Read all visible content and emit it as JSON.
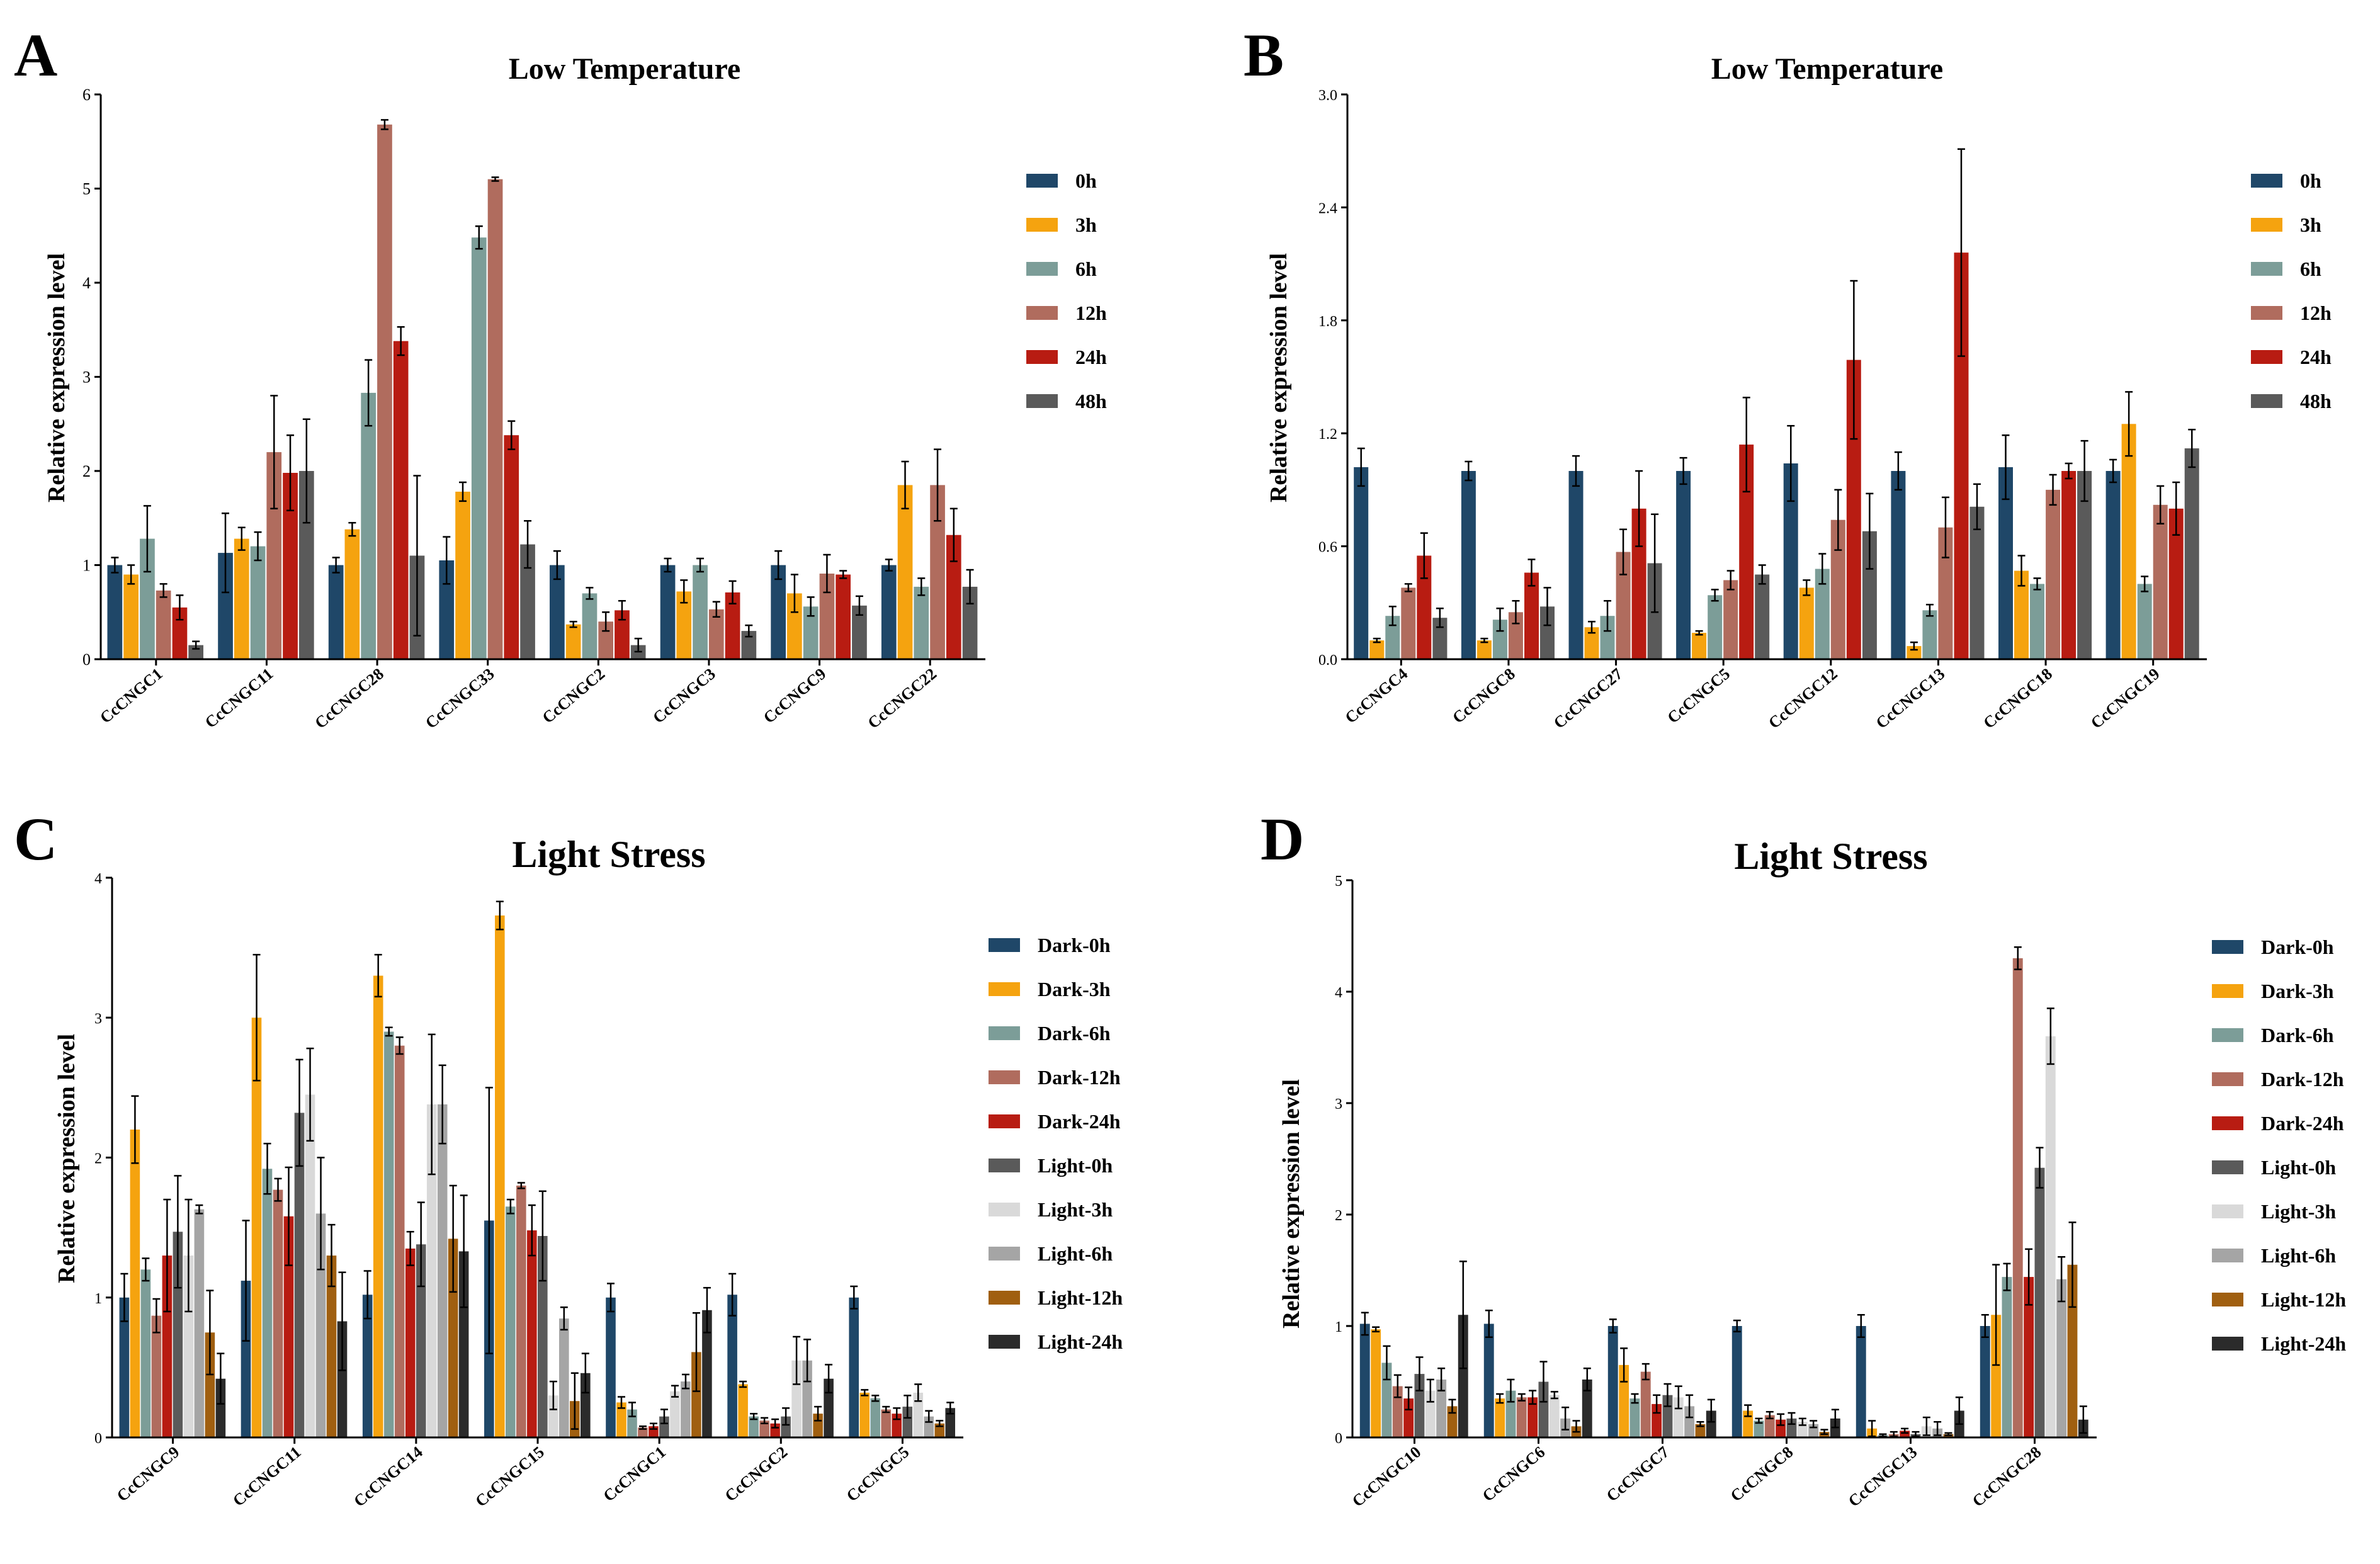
{
  "figure": {
    "colors": {
      "c0": "#1f4768",
      "c1": "#f5a30f",
      "c2": "#7c9d98",
      "c3": "#b06c5e",
      "c4": "#b81c12",
      "c5": "#5a5a5a",
      "c6": "#d9d9d9",
      "c7": "#a5a5a5",
      "c8": "#a05f10",
      "c9": "#2b2b2b"
    }
  },
  "chart_data": [
    {
      "panel": "A",
      "type": "bar",
      "title": "Low Temperature",
      "xlabel": "",
      "ylabel": "Relative expression level",
      "ylim": [
        0,
        6
      ],
      "yticks": [
        "0",
        "1",
        "2",
        "3",
        "4",
        "5",
        "6"
      ],
      "ytick_values": [
        0,
        1,
        2,
        3,
        4,
        5,
        6
      ],
      "legend_position": "right",
      "categories": [
        "CcCNGC1",
        "CcCNGC11",
        "CcCNGC28",
        "CcCNGC33",
        "CcCNGC2",
        "CcCNGC3",
        "CcCNGC9",
        "CcCNGC22"
      ],
      "series": [
        {
          "name": "0h",
          "color": "#1f4768",
          "values": [
            1.0,
            1.13,
            1.0,
            1.05,
            1.0,
            1.0,
            1.0,
            1.0
          ],
          "errors": [
            0.08,
            0.42,
            0.08,
            0.25,
            0.15,
            0.07,
            0.15,
            0.06
          ]
        },
        {
          "name": "3h",
          "color": "#f5a30f",
          "values": [
            0.9,
            1.28,
            1.38,
            1.78,
            0.37,
            0.72,
            0.7,
            1.85
          ],
          "errors": [
            0.1,
            0.12,
            0.07,
            0.1,
            0.03,
            0.12,
            0.2,
            0.25
          ]
        },
        {
          "name": "6h",
          "color": "#7c9d98",
          "values": [
            1.28,
            1.2,
            2.83,
            4.48,
            0.7,
            1.0,
            0.56,
            0.77
          ],
          "errors": [
            0.35,
            0.15,
            0.35,
            0.12,
            0.06,
            0.07,
            0.1,
            0.09
          ]
        },
        {
          "name": "12h",
          "color": "#b06c5e",
          "values": [
            0.73,
            2.2,
            5.68,
            5.1,
            0.4,
            0.53,
            0.91,
            1.85
          ],
          "errors": [
            0.07,
            0.6,
            0.05,
            0.02,
            0.1,
            0.08,
            0.2,
            0.38
          ]
        },
        {
          "name": "24h",
          "color": "#b81c12",
          "values": [
            0.55,
            1.98,
            3.38,
            2.38,
            0.52,
            0.71,
            0.9,
            1.32
          ],
          "errors": [
            0.13,
            0.4,
            0.15,
            0.15,
            0.1,
            0.12,
            0.04,
            0.28
          ]
        },
        {
          "name": "48h",
          "color": "#5a5a5a",
          "values": [
            0.15,
            2.0,
            1.1,
            1.22,
            0.15,
            0.3,
            0.57,
            0.77
          ],
          "errors": [
            0.04,
            0.55,
            0.85,
            0.25,
            0.07,
            0.06,
            0.1,
            0.18
          ]
        }
      ]
    },
    {
      "panel": "B",
      "type": "bar",
      "title": "Low Temperature",
      "xlabel": "",
      "ylabel": "Relative expression level",
      "ylim": [
        0,
        3.0
      ],
      "yticks": [
        "0.0",
        "0.6",
        "1.2",
        "1.8",
        "2.4",
        "3.0"
      ],
      "ytick_values": [
        0,
        0.6,
        1.2,
        1.8,
        2.4,
        3.0
      ],
      "legend_position": "right",
      "categories": [
        "CcCNGC4",
        "CcCNGC8",
        "CcCNGC27",
        "CcCNGC5",
        "CcCNGC12",
        "CcCNGC13",
        "CcCNGC18",
        "CcCNGC19"
      ],
      "series": [
        {
          "name": "0h",
          "color": "#1f4768",
          "values": [
            1.02,
            1.0,
            1.0,
            1.0,
            1.04,
            1.0,
            1.02,
            1.0
          ],
          "errors": [
            0.1,
            0.05,
            0.08,
            0.07,
            0.2,
            0.1,
            0.17,
            0.06
          ]
        },
        {
          "name": "3h",
          "color": "#f5a30f",
          "values": [
            0.1,
            0.1,
            0.17,
            0.14,
            0.38,
            0.07,
            0.47,
            1.25
          ],
          "errors": [
            0.01,
            0.01,
            0.03,
            0.01,
            0.04,
            0.02,
            0.08,
            0.17
          ]
        },
        {
          "name": "6h",
          "color": "#7c9d98",
          "values": [
            0.23,
            0.21,
            0.23,
            0.34,
            0.48,
            0.26,
            0.4,
            0.4
          ],
          "errors": [
            0.05,
            0.06,
            0.08,
            0.03,
            0.08,
            0.03,
            0.03,
            0.04
          ]
        },
        {
          "name": "12h",
          "color": "#b06c5e",
          "values": [
            0.38,
            0.25,
            0.57,
            0.42,
            0.74,
            0.7,
            0.9,
            0.82
          ],
          "errors": [
            0.02,
            0.06,
            0.12,
            0.05,
            0.16,
            0.16,
            0.08,
            0.1
          ]
        },
        {
          "name": "24h",
          "color": "#b81c12",
          "values": [
            0.55,
            0.46,
            0.8,
            1.14,
            1.59,
            2.16,
            1.0,
            0.8
          ],
          "errors": [
            0.12,
            0.07,
            0.2,
            0.25,
            0.42,
            0.55,
            0.04,
            0.14
          ]
        },
        {
          "name": "48h",
          "color": "#5a5a5a",
          "values": [
            0.22,
            0.28,
            0.51,
            0.45,
            0.68,
            0.81,
            1.0,
            1.12
          ],
          "errors": [
            0.05,
            0.1,
            0.26,
            0.05,
            0.2,
            0.12,
            0.16,
            0.1
          ]
        }
      ]
    },
    {
      "panel": "C",
      "type": "bar",
      "title": "Light Stress",
      "xlabel": "",
      "ylabel": "Relative expression level",
      "ylim": [
        0,
        4
      ],
      "yticks": [
        "0",
        "1",
        "2",
        "3",
        "4"
      ],
      "ytick_values": [
        0,
        1,
        2,
        3,
        4
      ],
      "legend_position": "right",
      "categories": [
        "CcCNGC9",
        "CcCNGC11",
        "CcCNGC14",
        "CcCNGC15",
        "CcCNGC1",
        "CcCNGC2",
        "CcCNGC5"
      ],
      "series": [
        {
          "name": "Dark-0h",
          "color": "#1f4768",
          "values": [
            1.0,
            1.12,
            1.02,
            1.55,
            1.0,
            1.02,
            1.0
          ],
          "errors": [
            0.17,
            0.43,
            0.17,
            0.95,
            0.1,
            0.15,
            0.08
          ]
        },
        {
          "name": "Dark-3h",
          "color": "#f5a30f",
          "values": [
            2.2,
            3.0,
            3.3,
            3.73,
            0.25,
            0.38,
            0.32
          ],
          "errors": [
            0.24,
            0.45,
            0.15,
            0.1,
            0.04,
            0.02,
            0.02
          ]
        },
        {
          "name": "Dark-6h",
          "color": "#7c9d98",
          "values": [
            1.2,
            1.92,
            2.9,
            1.65,
            0.2,
            0.15,
            0.28
          ],
          "errors": [
            0.08,
            0.18,
            0.03,
            0.05,
            0.05,
            0.02,
            0.02
          ]
        },
        {
          "name": "Dark-12h",
          "color": "#b06c5e",
          "values": [
            0.87,
            1.77,
            2.8,
            1.8,
            0.07,
            0.12,
            0.2
          ],
          "errors": [
            0.12,
            0.08,
            0.06,
            0.02,
            0.01,
            0.02,
            0.02
          ]
        },
        {
          "name": "Dark-24h",
          "color": "#b81c12",
          "values": [
            1.3,
            1.58,
            1.35,
            1.48,
            0.08,
            0.1,
            0.17
          ],
          "errors": [
            0.4,
            0.35,
            0.12,
            0.18,
            0.02,
            0.03,
            0.04
          ]
        },
        {
          "name": "Light-0h",
          "color": "#5a5a5a",
          "values": [
            1.47,
            2.32,
            1.38,
            1.44,
            0.15,
            0.15,
            0.22
          ],
          "errors": [
            0.4,
            0.38,
            0.3,
            0.32,
            0.05,
            0.06,
            0.08
          ]
        },
        {
          "name": "Light-3h",
          "color": "#d9d9d9",
          "values": [
            1.3,
            2.45,
            2.38,
            0.3,
            0.33,
            0.55,
            0.32
          ],
          "errors": [
            0.4,
            0.33,
            0.5,
            0.1,
            0.04,
            0.17,
            0.06
          ]
        },
        {
          "name": "Light-6h",
          "color": "#a5a5a5",
          "values": [
            1.63,
            1.6,
            2.38,
            0.85,
            0.4,
            0.55,
            0.15
          ],
          "errors": [
            0.03,
            0.4,
            0.28,
            0.08,
            0.05,
            0.15,
            0.04
          ]
        },
        {
          "name": "Light-12h",
          "color": "#a05f10",
          "values": [
            0.75,
            1.3,
            1.42,
            0.26,
            0.61,
            0.17,
            0.1
          ],
          "errors": [
            0.3,
            0.22,
            0.38,
            0.2,
            0.28,
            0.05,
            0.02
          ]
        },
        {
          "name": "Light-24h",
          "color": "#2b2b2b",
          "values": [
            0.42,
            0.83,
            1.33,
            0.46,
            0.91,
            0.42,
            0.21
          ],
          "errors": [
            0.18,
            0.35,
            0.4,
            0.14,
            0.16,
            0.1,
            0.04
          ]
        }
      ]
    },
    {
      "panel": "D",
      "type": "bar",
      "title": "Light Stress",
      "xlabel": "",
      "ylabel": "Relative expression level",
      "ylim": [
        0,
        5
      ],
      "yticks": [
        "0",
        "1",
        "2",
        "3",
        "4",
        "5"
      ],
      "ytick_values": [
        0,
        1,
        2,
        3,
        4,
        5
      ],
      "legend_position": "right",
      "categories": [
        "CcCNGC10",
        "CcCNGC6",
        "CcCNGC7",
        "CcCNGC8",
        "CcCNGC13",
        "CcCNGC28"
      ],
      "series": [
        {
          "name": "Dark-0h",
          "color": "#1f4768",
          "values": [
            1.02,
            1.02,
            1.0,
            1.0,
            1.0,
            1.0
          ],
          "errors": [
            0.1,
            0.12,
            0.06,
            0.05,
            0.1,
            0.1
          ]
        },
        {
          "name": "Dark-3h",
          "color": "#f5a30f",
          "values": [
            0.97,
            0.35,
            0.65,
            0.24,
            0.08,
            1.1
          ],
          "errors": [
            0.02,
            0.04,
            0.15,
            0.05,
            0.07,
            0.45
          ]
        },
        {
          "name": "Dark-6h",
          "color": "#7c9d98",
          "values": [
            0.67,
            0.42,
            0.35,
            0.15,
            0.02,
            1.44
          ],
          "errors": [
            0.15,
            0.1,
            0.04,
            0.02,
            0.01,
            0.12
          ]
        },
        {
          "name": "Dark-12h",
          "color": "#b06c5e",
          "values": [
            0.46,
            0.36,
            0.59,
            0.2,
            0.03,
            4.3
          ],
          "errors": [
            0.1,
            0.03,
            0.07,
            0.03,
            0.02,
            0.1
          ]
        },
        {
          "name": "Dark-24h",
          "color": "#b81c12",
          "values": [
            0.35,
            0.36,
            0.3,
            0.16,
            0.06,
            1.44
          ],
          "errors": [
            0.1,
            0.06,
            0.08,
            0.05,
            0.02,
            0.25
          ]
        },
        {
          "name": "Light-0h",
          "color": "#5a5a5a",
          "values": [
            0.57,
            0.5,
            0.38,
            0.17,
            0.03,
            2.42
          ],
          "errors": [
            0.15,
            0.18,
            0.1,
            0.05,
            0.02,
            0.18
          ]
        },
        {
          "name": "Light-3h",
          "color": "#d9d9d9",
          "values": [
            0.42,
            0.38,
            0.36,
            0.14,
            0.1,
            3.6
          ],
          "errors": [
            0.1,
            0.03,
            0.1,
            0.03,
            0.08,
            0.25
          ]
        },
        {
          "name": "Light-6h",
          "color": "#a5a5a5",
          "values": [
            0.52,
            0.17,
            0.28,
            0.12,
            0.08,
            1.42
          ],
          "errors": [
            0.1,
            0.1,
            0.1,
            0.03,
            0.06,
            0.2
          ]
        },
        {
          "name": "Light-12h",
          "color": "#a05f10",
          "values": [
            0.28,
            0.1,
            0.12,
            0.05,
            0.03,
            1.55
          ],
          "errors": [
            0.06,
            0.05,
            0.02,
            0.02,
            0.01,
            0.38
          ]
        },
        {
          "name": "Light-24h",
          "color": "#2b2b2b",
          "values": [
            1.1,
            0.52,
            0.24,
            0.17,
            0.24,
            0.16
          ],
          "errors": [
            0.48,
            0.1,
            0.1,
            0.08,
            0.12,
            0.12
          ]
        }
      ]
    }
  ]
}
